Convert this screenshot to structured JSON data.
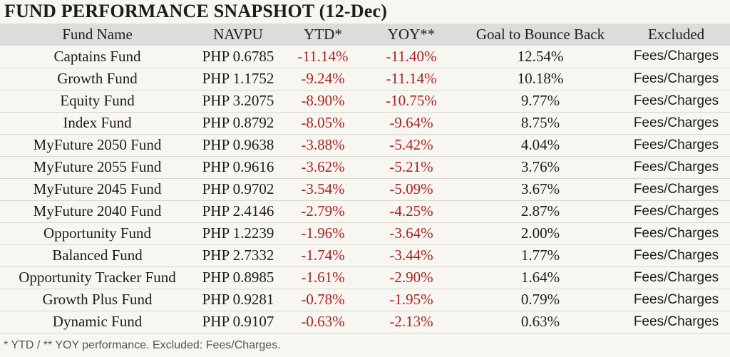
{
  "title": "FUND PERFORMANCE SNAPSHOT (12-Dec)",
  "headers": {
    "fund_name": "Fund Name",
    "navpu": "NAVPU",
    "ytd": "YTD*",
    "yoy": "YOY**",
    "goal": "Goal to Bounce Back",
    "excluded": "Excluded"
  },
  "rows": [
    {
      "fund": "Captains Fund",
      "navpu": "PHP 0.6785",
      "ytd": "-11.14%",
      "yoy": "-11.40%",
      "goal": "12.54%",
      "excluded": "Fees/Charges"
    },
    {
      "fund": "Growth Fund",
      "navpu": "PHP 1.1752",
      "ytd": "-9.24%",
      "yoy": "-11.14%",
      "goal": "10.18%",
      "excluded": "Fees/Charges"
    },
    {
      "fund": "Equity Fund",
      "navpu": "PHP 3.2075",
      "ytd": "-8.90%",
      "yoy": "-10.75%",
      "goal": "9.77%",
      "excluded": "Fees/Charges"
    },
    {
      "fund": "Index Fund",
      "navpu": "PHP 0.8792",
      "ytd": "-8.05%",
      "yoy": "-9.64%",
      "goal": "8.75%",
      "excluded": "Fees/Charges"
    },
    {
      "fund": "MyFuture 2050 Fund",
      "navpu": "PHP 0.9638",
      "ytd": "-3.88%",
      "yoy": "-5.42%",
      "goal": "4.04%",
      "excluded": "Fees/Charges"
    },
    {
      "fund": "MyFuture 2055 Fund",
      "navpu": "PHP 0.9616",
      "ytd": "-3.62%",
      "yoy": "-5.21%",
      "goal": "3.76%",
      "excluded": "Fees/Charges"
    },
    {
      "fund": "MyFuture 2045 Fund",
      "navpu": "PHP 0.9702",
      "ytd": "-3.54%",
      "yoy": "-5.09%",
      "goal": "3.67%",
      "excluded": "Fees/Charges"
    },
    {
      "fund": "MyFuture 2040 Fund",
      "navpu": "PHP 2.4146",
      "ytd": "-2.79%",
      "yoy": "-4.25%",
      "goal": "2.87%",
      "excluded": "Fees/Charges"
    },
    {
      "fund": "Opportunity Fund",
      "navpu": "PHP 1.2239",
      "ytd": "-1.96%",
      "yoy": "-3.64%",
      "goal": "2.00%",
      "excluded": "Fees/Charges"
    },
    {
      "fund": "Balanced Fund",
      "navpu": "PHP 2.7332",
      "ytd": "-1.74%",
      "yoy": "-3.44%",
      "goal": "1.77%",
      "excluded": "Fees/Charges"
    },
    {
      "fund": "Opportunity Tracker Fund",
      "navpu": "PHP 0.8985",
      "ytd": "-1.61%",
      "yoy": "-2.90%",
      "goal": "1.64%",
      "excluded": "Fees/Charges"
    },
    {
      "fund": "Growth Plus Fund",
      "navpu": "PHP 0.9281",
      "ytd": "-0.78%",
      "yoy": "-1.95%",
      "goal": "0.79%",
      "excluded": "Fees/Charges"
    },
    {
      "fund": "Dynamic Fund",
      "navpu": "PHP 0.9107",
      "ytd": "-0.63%",
      "yoy": "-2.13%",
      "goal": "0.63%",
      "excluded": "Fees/Charges"
    }
  ],
  "footnote": "* YTD / ** YOY performance. Excluded: Fees/Charges.",
  "colors": {
    "background": "#f8f6f1",
    "header_background": "#dcdcdc",
    "negative": "#a52323",
    "text": "#1c1c1c"
  }
}
